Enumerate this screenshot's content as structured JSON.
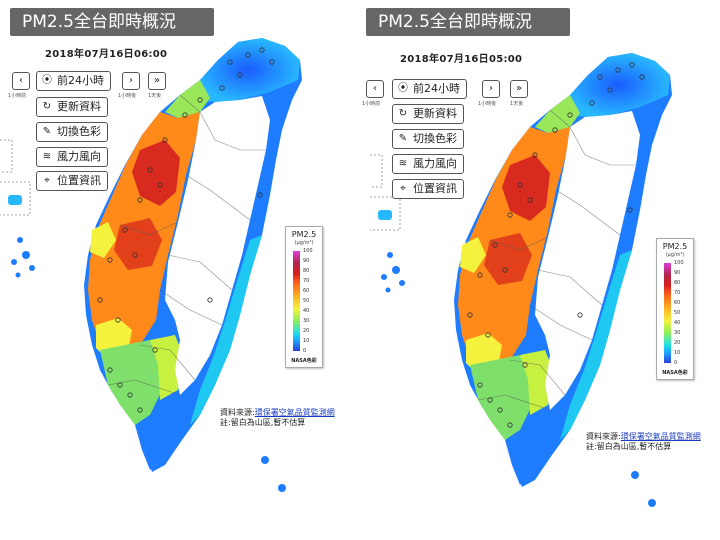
{
  "panels": [
    {
      "title": "PM2.5全台即時概況",
      "timestamp": "2018年07月16日06:00",
      "nav": {
        "prev_caption": "1小時前",
        "next_caption": "1小時後",
        "last_caption": "1天後"
      },
      "buttons": {
        "past24": "前24小時",
        "refresh": "更新資料",
        "color": "切換色彩",
        "wind": "風力風向",
        "location": "位置資訊"
      },
      "legend": {
        "title": "PM2.5",
        "unit": "(μg/m³)",
        "ticks": [
          "100",
          "90",
          "80",
          "70",
          "60",
          "50",
          "40",
          "30",
          "20",
          "10",
          "0"
        ],
        "footer": "NASA色彩"
      },
      "source": {
        "label": "資料來源:",
        "link": "環保署空氣品質監測網",
        "note": "註:留白為山區,暫不估算"
      }
    },
    {
      "title": "PM2.5全台即時概況",
      "timestamp": "2018年07月16日05:00",
      "nav": {
        "prev_caption": "1小時前",
        "next_caption": "1小時後",
        "last_caption": "1天後"
      },
      "buttons": {
        "past24": "前24小時",
        "refresh": "更新資料",
        "color": "切換色彩",
        "wind": "風力風向",
        "location": "位置資訊"
      },
      "legend": {
        "title": "PM2.5",
        "unit": "(μg/m³)",
        "ticks": [
          "100",
          "90",
          "80",
          "70",
          "60",
          "50",
          "40",
          "30",
          "20",
          "10",
          "0"
        ],
        "footer": "NASA色彩"
      },
      "source": {
        "label": "資料來源:",
        "link": "環保署空氣品質監測網",
        "note": "註:留白為山區,暫不估算"
      }
    }
  ],
  "colors": {
    "title_bg": "#666666",
    "mountain": "#ffffff",
    "high": "#d81e1e",
    "mid": "#ff8a1a",
    "low": "#f4f23c",
    "clean": "#1a6fff"
  }
}
